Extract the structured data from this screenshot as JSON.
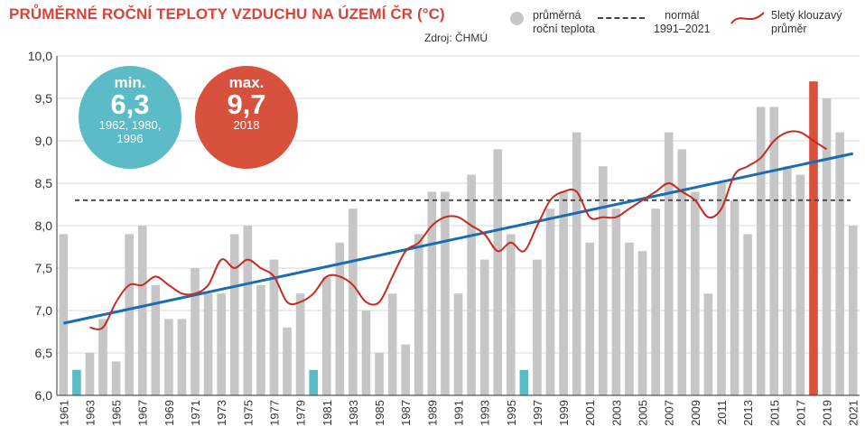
{
  "title": "PRŮMĚRNÉ ROČNÍ TEPLOTY VZDUCHU NA ÚZEMÍ ČR (°C)",
  "source": "Zdroj: ČHMÚ",
  "legend": {
    "bars": [
      "průměrná",
      "roční teplota"
    ],
    "normal": [
      "normál",
      "1991–2021"
    ],
    "moving_avg": [
      "5letý klouzavý",
      "průměr"
    ]
  },
  "min_badge": {
    "label": "min.",
    "value": "6,3",
    "years": [
      "1962, 1980,",
      "1996"
    ]
  },
  "max_badge": {
    "label": "max.",
    "value": "9,7",
    "years": [
      "2018"
    ]
  },
  "colors": {
    "bar": "#c6c6c6",
    "bar_min": "#5bbcc8",
    "bar_max": "#d8513c",
    "trend": "#1a6db5",
    "moving_avg": "#c82a20",
    "normal": "#444444",
    "title": "#d8433b"
  },
  "chart_data": {
    "type": "bar",
    "title": "PRŮMĚRNÉ ROČNÍ TEPLOTY VZDUCHU NA ÚZEMÍ ČR (°C)",
    "x": [
      1961,
      1962,
      1963,
      1964,
      1965,
      1966,
      1967,
      1968,
      1969,
      1970,
      1971,
      1972,
      1973,
      1974,
      1975,
      1976,
      1977,
      1978,
      1979,
      1980,
      1981,
      1982,
      1983,
      1984,
      1985,
      1986,
      1987,
      1988,
      1989,
      1990,
      1991,
      1992,
      1993,
      1994,
      1995,
      1996,
      1997,
      1998,
      1999,
      2000,
      2001,
      2002,
      2003,
      2004,
      2005,
      2006,
      2007,
      2008,
      2009,
      2010,
      2011,
      2012,
      2013,
      2014,
      2015,
      2016,
      2017,
      2018,
      2019,
      2020,
      2021
    ],
    "x_tick_labels": [
      "1961",
      "1963",
      "1965",
      "1967",
      "1969",
      "1971",
      "1973",
      "1975",
      "1977",
      "1979",
      "1981",
      "1983",
      "1985",
      "1987",
      "1989",
      "1991",
      "1993",
      "1995",
      "1997",
      "1999",
      "2001",
      "2003",
      "2005",
      "2007",
      "2009",
      "2011",
      "2013",
      "2015",
      "2017",
      "2019",
      "2021"
    ],
    "series": [
      {
        "name": "průměrná roční teplota",
        "type": "bar",
        "values": [
          7.9,
          6.3,
          6.5,
          6.9,
          6.4,
          7.9,
          8.0,
          7.3,
          6.9,
          6.9,
          7.5,
          7.2,
          7.2,
          7.9,
          8.0,
          7.3,
          7.6,
          6.8,
          7.2,
          6.3,
          7.4,
          7.8,
          8.2,
          7.0,
          6.5,
          7.2,
          6.6,
          7.9,
          8.4,
          8.4,
          7.2,
          8.6,
          7.6,
          8.9,
          7.9,
          6.3,
          7.6,
          8.2,
          8.4,
          9.1,
          7.8,
          8.7,
          8.2,
          7.8,
          7.7,
          8.2,
          9.1,
          8.9,
          8.4,
          7.2,
          8.5,
          8.3,
          7.9,
          9.4,
          9.4,
          8.7,
          8.6,
          9.7,
          9.5,
          9.1,
          8.0
        ]
      },
      {
        "name": "5letý klouzavý průměr",
        "type": "line",
        "values": [
          null,
          null,
          6.8,
          6.8,
          7.1,
          7.3,
          7.3,
          7.4,
          7.3,
          7.2,
          7.2,
          7.3,
          7.6,
          7.5,
          7.6,
          7.5,
          7.4,
          7.1,
          7.1,
          7.2,
          7.4,
          7.4,
          7.3,
          7.1,
          7.1,
          7.4,
          7.7,
          7.8,
          8.0,
          8.1,
          8.1,
          8.0,
          7.9,
          7.7,
          7.8,
          7.7,
          8.0,
          8.3,
          8.4,
          8.4,
          8.1,
          8.1,
          8.1,
          8.2,
          8.3,
          8.4,
          8.5,
          8.4,
          8.3,
          8.1,
          8.2,
          8.6,
          8.7,
          8.8,
          9.0,
          9.1,
          9.1,
          9.0,
          8.9,
          null,
          null
        ]
      }
    ],
    "trend": {
      "name": "lineární trend",
      "start": [
        1961,
        6.85
      ],
      "end": [
        2021,
        8.85
      ]
    },
    "normal": {
      "name": "normál 1991–2021",
      "value": 8.3
    },
    "highlight_min_years": [
      1962,
      1980,
      1996
    ],
    "highlight_max_year": 2018,
    "y_ticks": [
      "6,0",
      "6,5",
      "7,0",
      "7,5",
      "8,0",
      "8,5",
      "9,0",
      "9,5",
      "10,0"
    ],
    "ylim": [
      6.0,
      10.0
    ],
    "grid": true,
    "xlabel": "",
    "ylabel": ""
  }
}
